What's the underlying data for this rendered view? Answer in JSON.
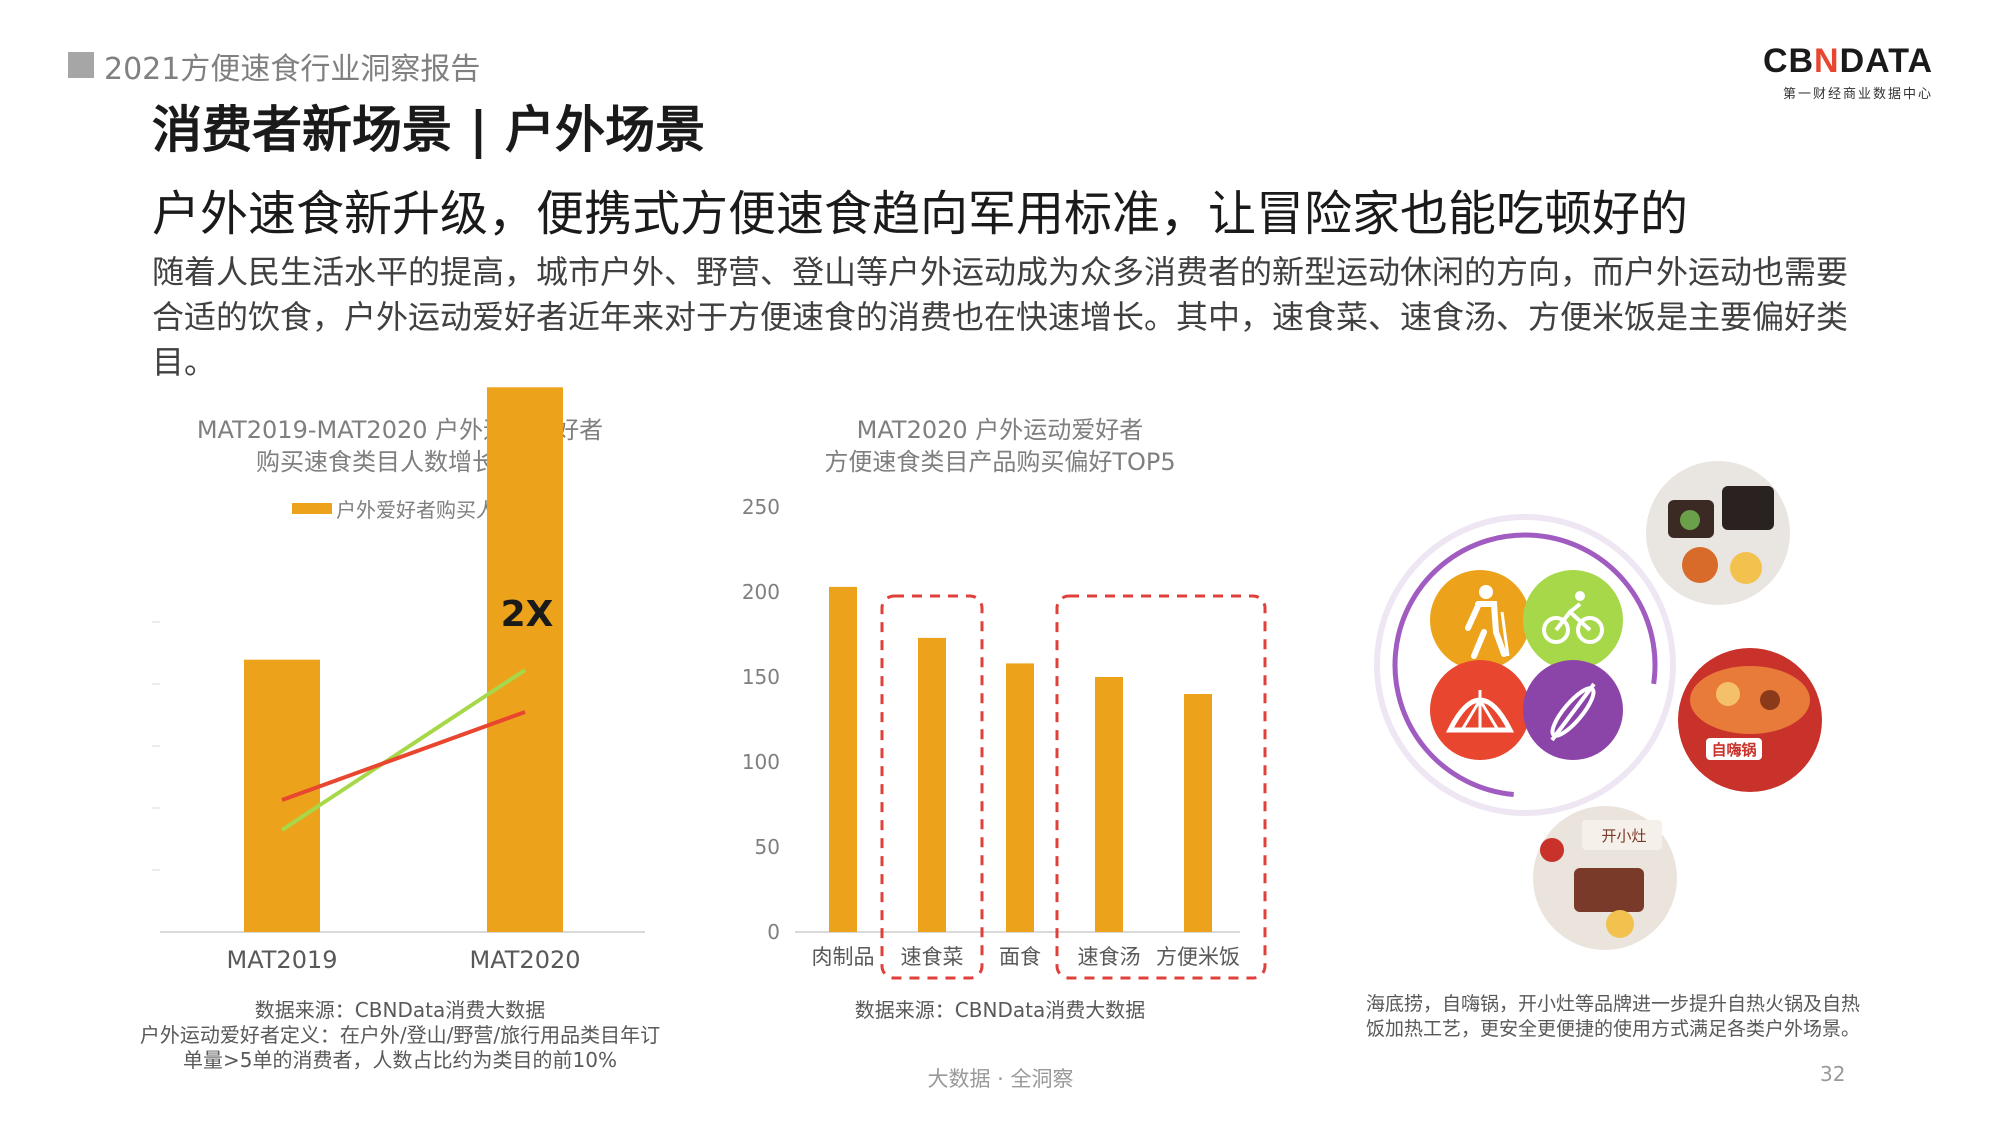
{
  "header": {
    "report_title": "2021方便速食行业洞察报告",
    "logo_brand_left": "CB",
    "logo_brand_mid": "N",
    "logo_brand_right": "DATA",
    "logo_sub": "第一财经商业数据中心"
  },
  "section_title": "消费者新场景 | 户外场景",
  "headline": "户外速食新升级，便携式方便速食趋向军用标准，让冒险家也能吃顿好的",
  "body_text": "随着人民生活水平的提高，城市户外、野营、登山等户外运动成为众多消费者的新型运动休闲的方向，而户外运动也需要合适的饮食，户外运动爱好者近年来对于方便速食的消费也在快速增长。其中，速食菜、速食汤、方便米饭是主要偏好类目。",
  "colors": {
    "bar": "#eca31b",
    "trend_red": "#e8462f",
    "trend_green": "#a6d84a",
    "dash": "#e0403a",
    "icon_orange": "#eca31b",
    "icon_green": "#a6d84a",
    "icon_red": "#e8462f",
    "icon_purple": "#8b45a8"
  },
  "chart_data": [
    {
      "type": "bar",
      "title": "MAT2019-MAT2020 户外运动爱好者",
      "subtitle": "购买速食类目人数增长走势",
      "legend": "户外爱好者购买人数",
      "categories": [
        "MAT2019",
        "MAT2020"
      ],
      "values": [
        1,
        2
      ],
      "ylim": [
        0,
        2.35
      ],
      "annotation": "2X",
      "grid": false
    },
    {
      "type": "bar",
      "title": "MAT2020 户外运动爱好者",
      "subtitle": "方便速食类目产品购买偏好TOP5",
      "categories": [
        "肉制品",
        "速食菜",
        "面食",
        "速食汤",
        "方便米饭"
      ],
      "values": [
        203,
        173,
        158,
        150,
        140
      ],
      "ylim": [
        0,
        250
      ],
      "yticks": [
        "0",
        "50",
        "100",
        "150",
        "200",
        "250"
      ],
      "grid": false,
      "highlight_groups": [
        [
          "速食菜"
        ],
        [
          "速食汤",
          "方便米饭"
        ]
      ]
    }
  ],
  "chart1_source": "数据来源：CBNData消费大数据",
  "chart1_def1": "户外运动爱好者定义：在户外/登山/野营/旅行用品类目年订",
  "chart1_def2": "单量>5单的消费者，人数占比约为类目的前10%",
  "chart2_source": "数据来源：CBNData消费大数据",
  "right_note": "海底捞，自嗨锅，开小灶等品牌进一步提升自热火锅及自热饭加热工艺，更安全更便捷的使用方式满足各类户外场景。",
  "icons": [
    "hiking-icon",
    "cycling-icon",
    "tent-icon",
    "kayak-icon"
  ],
  "food_photo_labels": [
    "自嗨锅",
    "开小灶"
  ],
  "footer": "大数据 · 全洞察",
  "page_number": "32"
}
